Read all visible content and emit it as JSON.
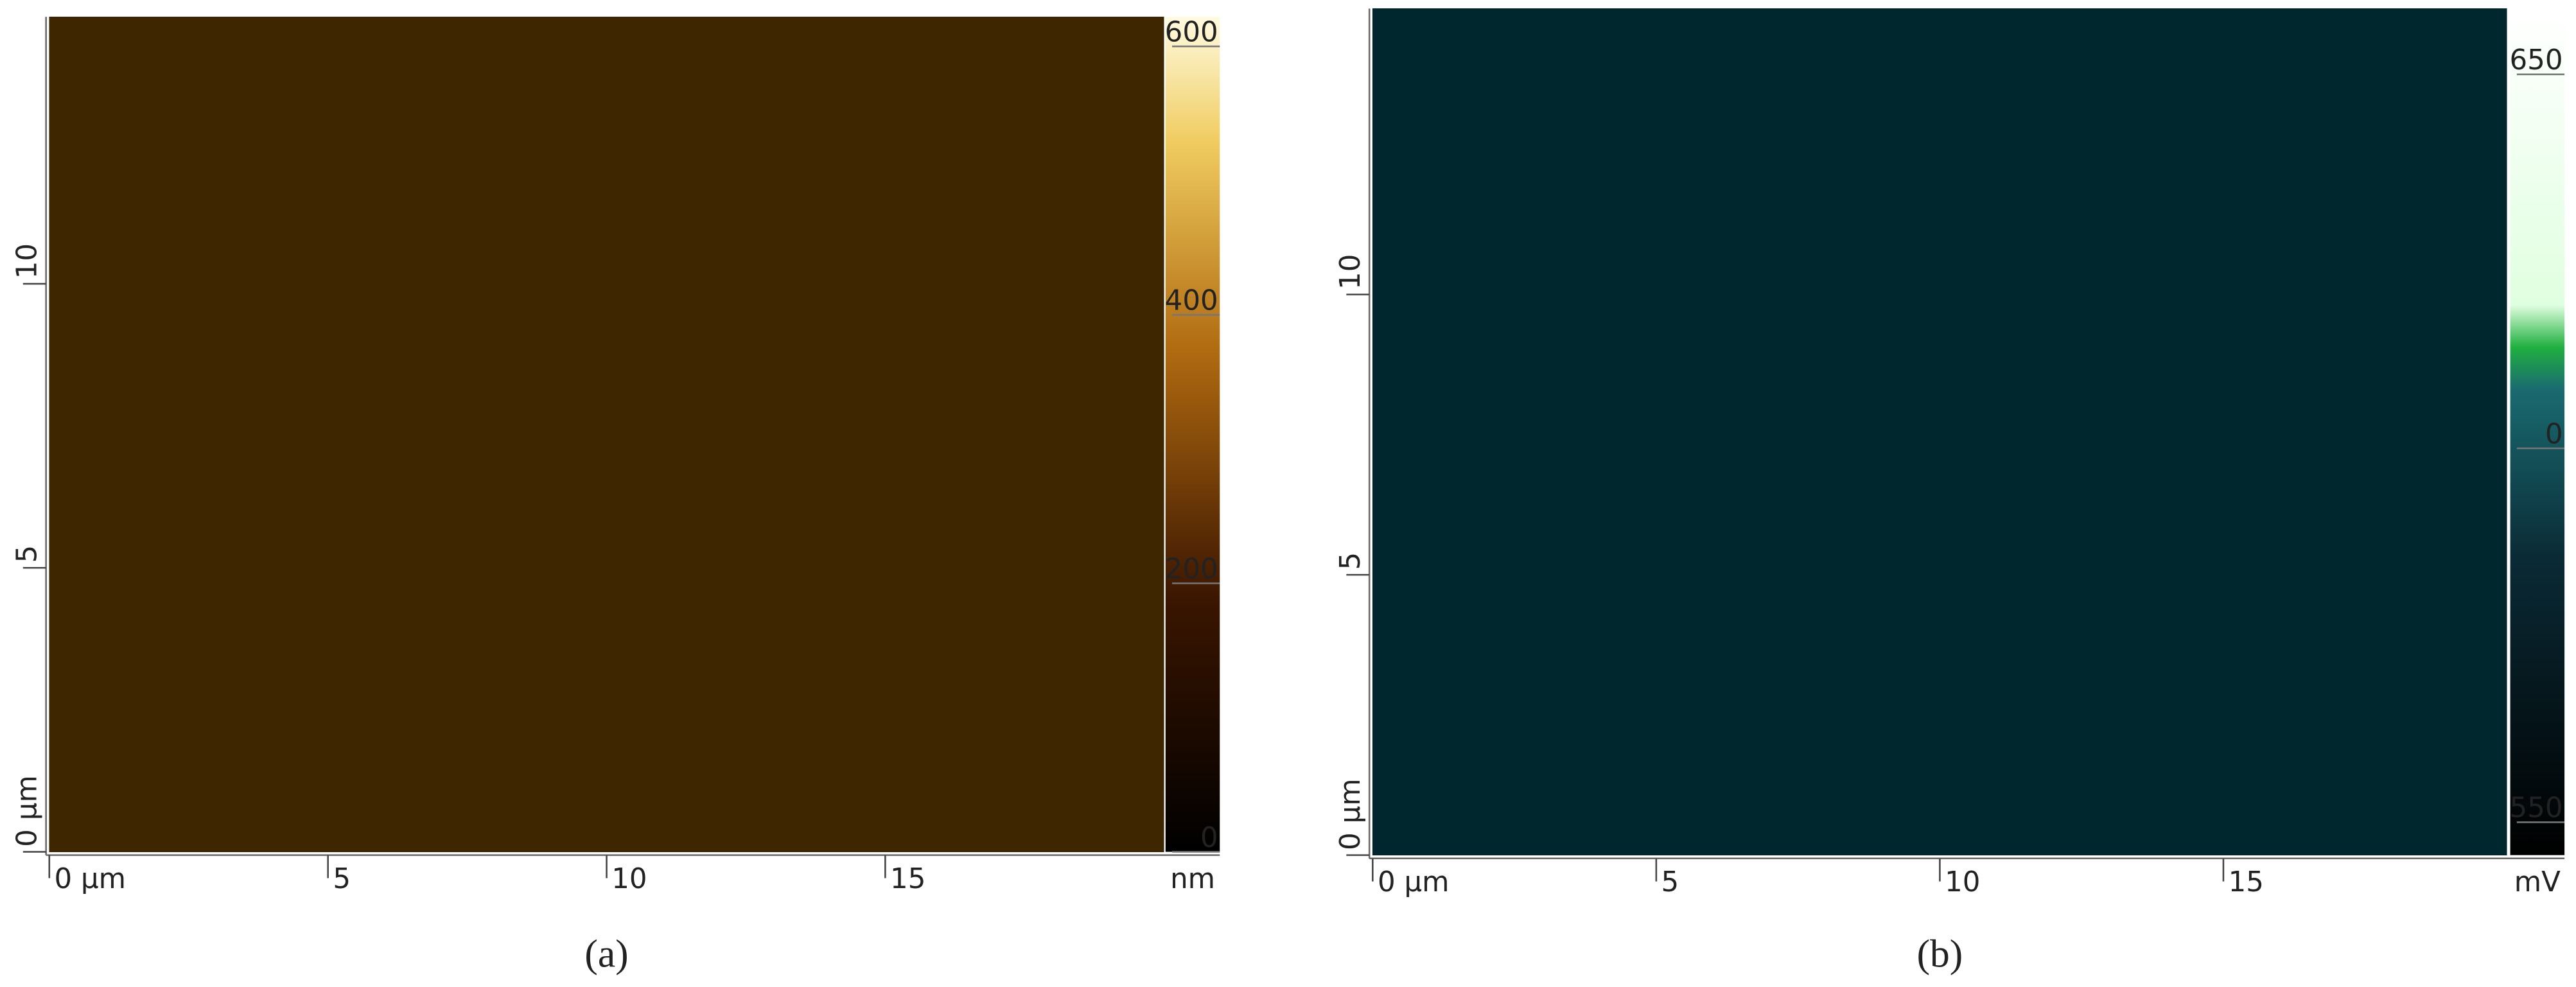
{
  "chart_data": [
    {
      "type": "heatmap",
      "label": "(a)",
      "xlim": [
        0,
        20
      ],
      "xticks": [
        {
          "value": 0,
          "label": "0 µm"
        },
        5,
        10,
        15
      ],
      "ylim": [
        0,
        14.7
      ],
      "yticks": [
        {
          "value": 0,
          "label": "0 µm"
        },
        5,
        10
      ],
      "colorbar": {
        "unit": "nm",
        "lim": [
          0,
          622
        ],
        "ticks": [
          0,
          200,
          400,
          600
        ]
      }
    },
    {
      "type": "heatmap",
      "label": "(b)",
      "xlim": [
        0,
        20
      ],
      "xticks": [
        {
          "value": 0,
          "label": "0 µm"
        },
        5,
        10,
        15
      ],
      "ylim": [
        0,
        15.1
      ],
      "yticks": [
        {
          "value": 0,
          "label": "0 µm"
        },
        5,
        10
      ],
      "colorbar": {
        "unit": "mV",
        "ticks": [
          "650",
          "0",
          "550"
        ]
      }
    }
  ]
}
